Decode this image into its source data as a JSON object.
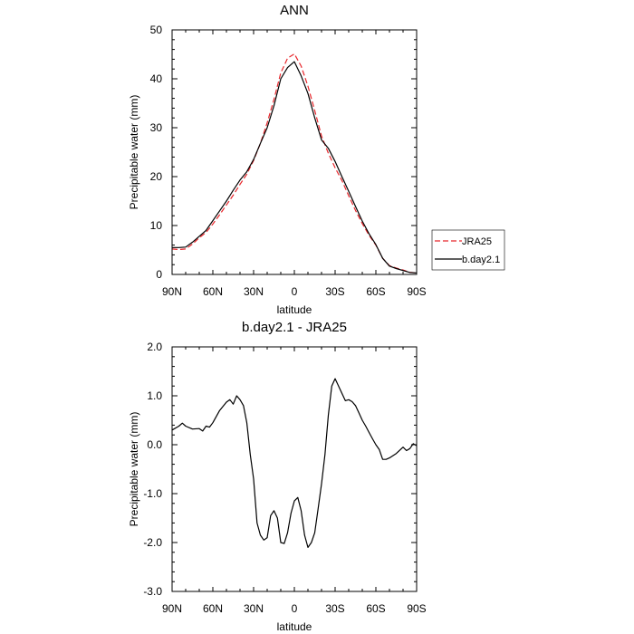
{
  "chart_data": [
    {
      "type": "line",
      "title": "ANN",
      "xlabel": "latitude",
      "ylabel": "Precipitable water (mm)",
      "xlim": [
        90,
        -90
      ],
      "ylim": [
        0,
        50
      ],
      "x_ticks": [
        90,
        60,
        30,
        0,
        -30,
        -60,
        -90
      ],
      "x_tick_labels": [
        "90N",
        "60N",
        "30N",
        "0",
        "30S",
        "60S",
        "90S"
      ],
      "y_ticks": [
        0,
        10,
        20,
        30,
        40,
        50
      ],
      "y_tick_labels": [
        "0",
        "10",
        "20",
        "30",
        "40",
        "50"
      ],
      "legend_position": "right",
      "series": [
        {
          "name": "JRA25",
          "color": "#e8262b",
          "dash": "dashed",
          "x": [
            90,
            85,
            80,
            75,
            70,
            65,
            60,
            55,
            50,
            45,
            40,
            35,
            30,
            25,
            20,
            15,
            10,
            5,
            0,
            -5,
            -10,
            -15,
            -20,
            -25,
            -30,
            -35,
            -40,
            -45,
            -50,
            -55,
            -60,
            -65,
            -70,
            -75,
            -80,
            -85,
            -90
          ],
          "values": [
            5.2,
            5.1,
            5.2,
            6.2,
            7.5,
            8.6,
            10.3,
            12.2,
            14.2,
            16.2,
            18.4,
            20.5,
            23.3,
            26.8,
            31.0,
            35.8,
            41.2,
            44.2,
            45.1,
            42.6,
            38.5,
            33.5,
            28.3,
            24.8,
            21.8,
            19.2,
            16.1,
            13.1,
            10.4,
            8.0,
            6.0,
            3.3,
            1.8,
            1.3,
            0.9,
            0.45,
            0.3
          ]
        },
        {
          "name": "b.day2.1",
          "color": "#000000",
          "dash": "solid",
          "x": [
            90,
            85,
            80,
            75,
            70,
            65,
            60,
            55,
            50,
            45,
            40,
            35,
            30,
            25,
            20,
            15,
            10,
            5,
            0,
            -5,
            -10,
            -15,
            -20,
            -25,
            -30,
            -35,
            -40,
            -45,
            -50,
            -55,
            -60,
            -65,
            -70,
            -75,
            -80,
            -85,
            -90
          ],
          "values": [
            5.5,
            5.5,
            5.6,
            6.6,
            7.8,
            9.0,
            11.0,
            13.0,
            15.0,
            17.2,
            19.3,
            21.0,
            23.5,
            26.8,
            30.0,
            34.5,
            40.0,
            42.3,
            43.5,
            40.6,
            37.0,
            32.0,
            27.5,
            25.8,
            23.1,
            20.0,
            17.0,
            13.9,
            10.9,
            8.3,
            6.1,
            3.3,
            1.7,
            1.2,
            0.8,
            0.4,
            0.3
          ]
        }
      ]
    },
    {
      "type": "line",
      "title": "b.day2.1 - JRA25",
      "xlabel": "latitude",
      "ylabel": "Precipitable water (mm)",
      "xlim": [
        90,
        -90
      ],
      "ylim": [
        -3.0,
        2.0
      ],
      "x_ticks": [
        90,
        60,
        30,
        0,
        -30,
        -60,
        -90
      ],
      "x_tick_labels": [
        "90N",
        "60N",
        "30N",
        "0",
        "30S",
        "60S",
        "90S"
      ],
      "y_ticks": [
        2.0,
        1.0,
        0.0,
        -1.0,
        -2.0,
        -3.0
      ],
      "y_tick_labels": [
        "2.0",
        "1.0",
        "0.0",
        "-1.0",
        "-2.0",
        "-3.0"
      ],
      "series": [
        {
          "color": "#000000",
          "dash": "solid",
          "x": [
            90,
            85,
            82.5,
            80,
            75,
            70,
            67.5,
            65,
            62.5,
            60,
            55,
            50,
            47.5,
            45,
            42.5,
            40,
            37.5,
            35,
            32.5,
            30,
            27.5,
            25,
            22.5,
            20,
            17.5,
            15,
            12.5,
            10,
            7.5,
            5,
            2.5,
            0,
            -2.5,
            -5,
            -7.5,
            -10,
            -12.5,
            -15,
            -17.5,
            -20,
            -22.5,
            -25,
            -27.5,
            -30,
            -32.5,
            -35,
            -37.5,
            -40,
            -42.5,
            -45,
            -47.5,
            -50,
            -52.5,
            -55,
            -57.5,
            -60,
            -62.5,
            -65,
            -67.5,
            -70,
            -75,
            -80,
            -82.5,
            -85,
            -87.5,
            -90
          ],
          "values": [
            0.3,
            0.38,
            0.44,
            0.38,
            0.32,
            0.33,
            0.28,
            0.38,
            0.36,
            0.45,
            0.7,
            0.87,
            0.92,
            0.83,
            1.0,
            0.92,
            0.8,
            0.45,
            -0.2,
            -0.7,
            -1.6,
            -1.85,
            -1.95,
            -1.9,
            -1.45,
            -1.35,
            -1.5,
            -2.0,
            -2.02,
            -1.8,
            -1.4,
            -1.15,
            -1.08,
            -1.35,
            -1.85,
            -2.1,
            -2.0,
            -1.8,
            -1.3,
            -0.8,
            -0.2,
            0.6,
            1.2,
            1.35,
            1.2,
            1.05,
            0.9,
            0.92,
            0.88,
            0.8,
            0.65,
            0.5,
            0.38,
            0.25,
            0.12,
            0.0,
            -0.1,
            -0.3,
            -0.3,
            -0.27,
            -0.18,
            -0.05,
            -0.12,
            -0.08,
            0.02,
            -0.02
          ]
        }
      ]
    }
  ]
}
